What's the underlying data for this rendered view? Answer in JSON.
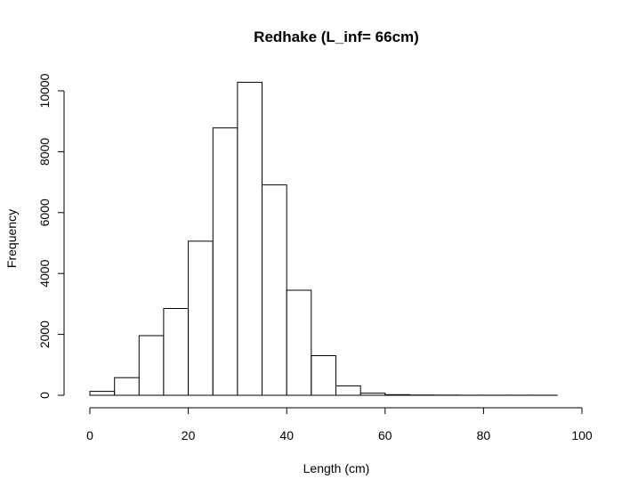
{
  "chart_data": {
    "type": "bar",
    "title": "Redhake (L_inf= 66cm)",
    "xlabel": "Length (cm)",
    "ylabel": "Frequency",
    "bin_width": 5,
    "bins": [
      {
        "start": 0,
        "value": 130
      },
      {
        "start": 5,
        "value": 580
      },
      {
        "start": 10,
        "value": 1960
      },
      {
        "start": 15,
        "value": 2850
      },
      {
        "start": 20,
        "value": 5060
      },
      {
        "start": 25,
        "value": 8780
      },
      {
        "start": 30,
        "value": 10280
      },
      {
        "start": 35,
        "value": 6910
      },
      {
        "start": 40,
        "value": 3450
      },
      {
        "start": 45,
        "value": 1300
      },
      {
        "start": 50,
        "value": 310
      },
      {
        "start": 55,
        "value": 70
      },
      {
        "start": 60,
        "value": 20
      },
      {
        "start": 65,
        "value": 10
      },
      {
        "start": 70,
        "value": 6
      },
      {
        "start": 75,
        "value": 4
      },
      {
        "start": 80,
        "value": 3
      },
      {
        "start": 85,
        "value": 2
      },
      {
        "start": 90,
        "value": 2
      },
      {
        "start": 95,
        "value": 1
      }
    ],
    "x_ticks": [
      0,
      20,
      40,
      60,
      80,
      100
    ],
    "y_ticks": [
      0,
      2000,
      4000,
      6000,
      8000,
      10000
    ],
    "xlim": [
      0,
      100
    ],
    "ylim": [
      0,
      10000
    ],
    "grid": false,
    "legend": "none",
    "colors": {
      "bar_fill": "#ffffff",
      "bar_stroke": "#000000"
    }
  }
}
